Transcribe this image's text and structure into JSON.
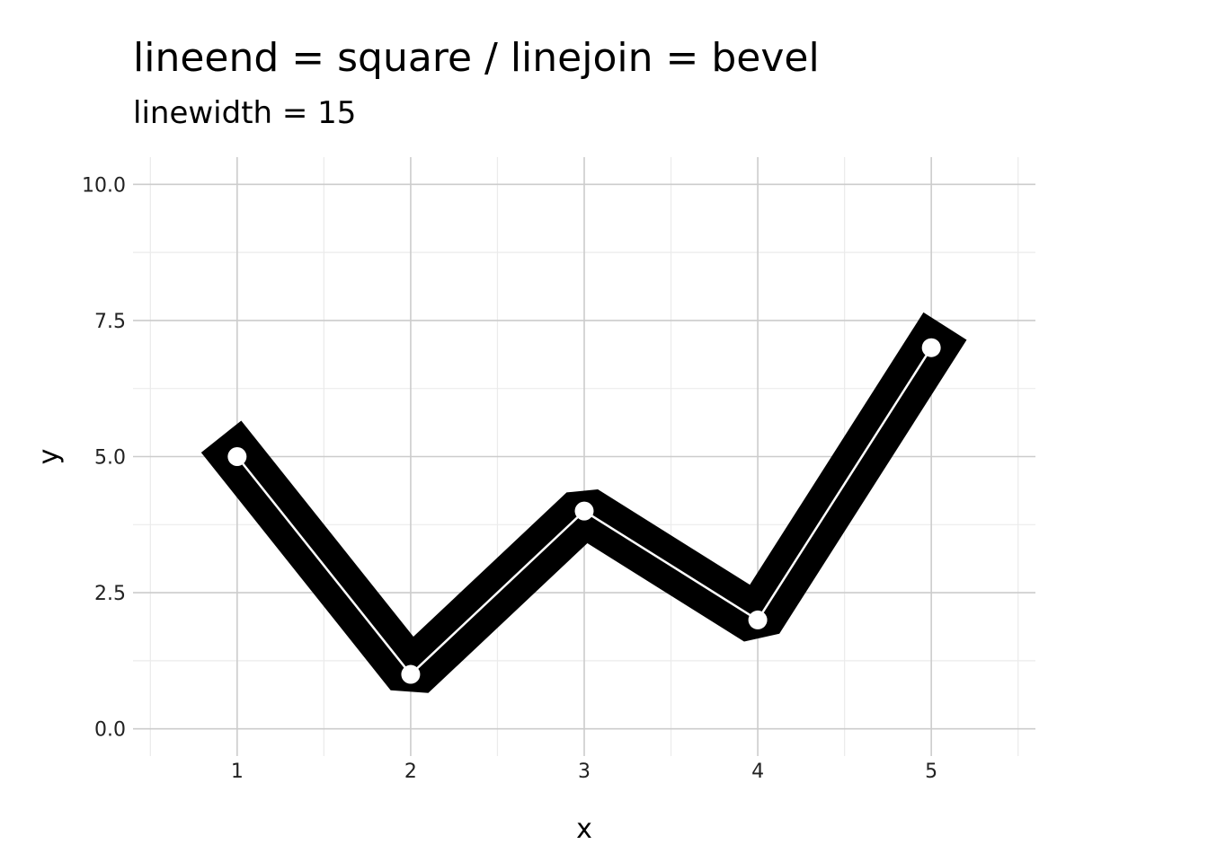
{
  "chart_data": {
    "type": "line",
    "title": "lineend = square / linejoin = bevel",
    "subtitle": "linewidth = 15",
    "xlabel": "x",
    "ylabel": "y",
    "x": [
      1,
      2,
      3,
      4,
      5
    ],
    "series": [
      {
        "values": [
          5,
          1,
          4,
          2,
          7
        ]
      }
    ],
    "xlim": [
      0.4,
      5.6
    ],
    "ylim": [
      -0.5,
      10.5
    ],
    "x_ticks": [
      "1",
      "2",
      "3",
      "4",
      "5"
    ],
    "y_ticks": [
      "0.0",
      "2.5",
      "5.0",
      "7.5",
      "10.0"
    ],
    "y_tick_values": [
      0,
      2.5,
      5,
      7.5,
      10
    ],
    "grid": true,
    "legend": "none",
    "colors": {
      "thick_line": "#000000",
      "thin_line": "#ffffff",
      "points": "#ffffff",
      "grid_major": "#cccccc",
      "grid_minor": "#ebebeb"
    }
  }
}
